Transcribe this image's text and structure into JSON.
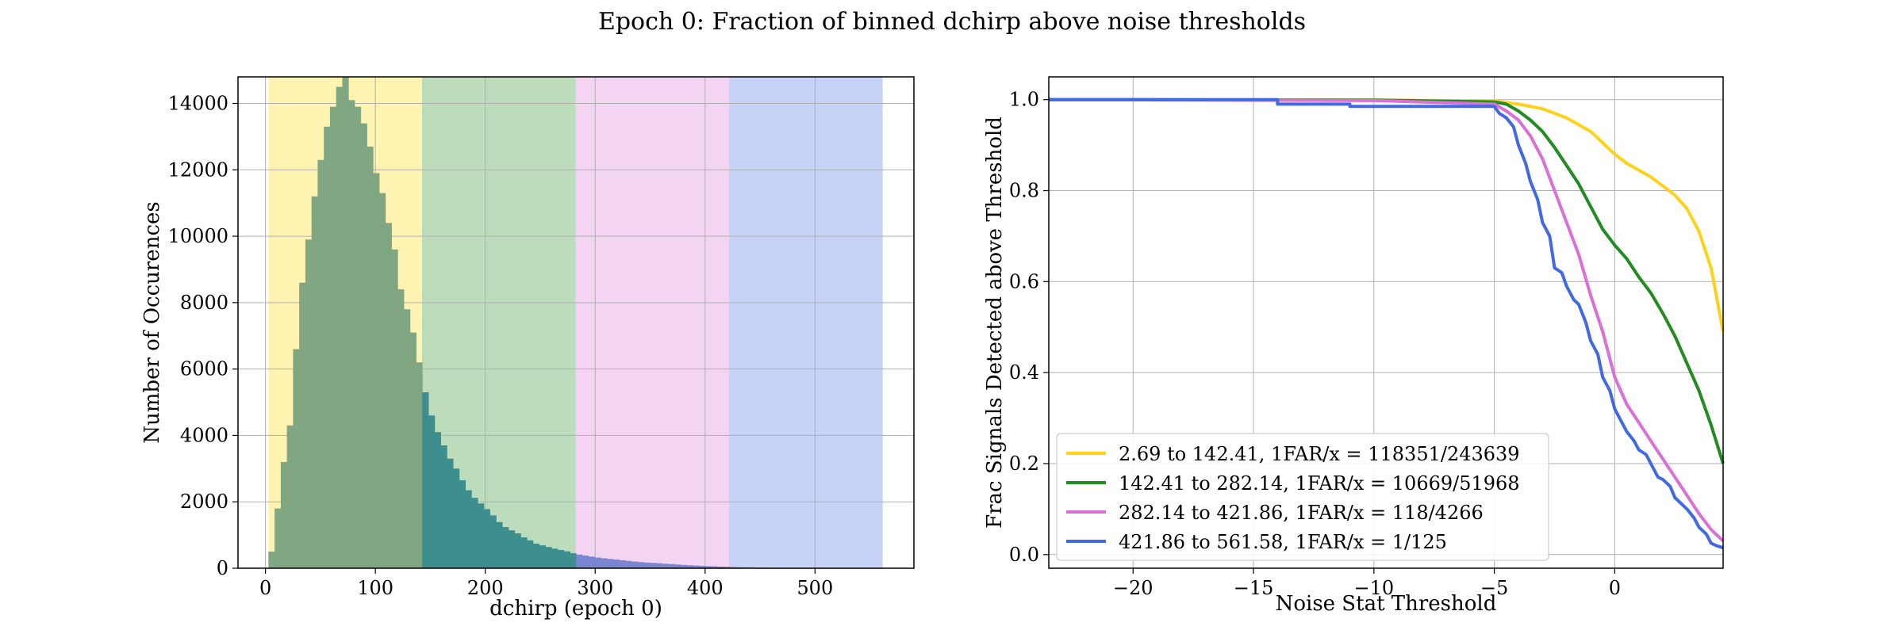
{
  "figure": {
    "title": "Epoch 0: Fraction of binned dchirp above noise thresholds"
  },
  "chart_data": [
    {
      "type": "bar",
      "xlabel": "dchirp (epoch 0)",
      "ylabel": "Number of Occurences",
      "xlim": [
        -25,
        590
      ],
      "ylim": [
        0,
        14800
      ],
      "grid": true,
      "xticks": [
        0,
        100,
        200,
        300,
        400,
        500
      ],
      "yticks": [
        0,
        2000,
        4000,
        6000,
        8000,
        10000,
        12000,
        14000
      ],
      "bands": [
        {
          "from": 2.69,
          "to": 142.41,
          "color": "#ffd700"
        },
        {
          "from": 142.41,
          "to": 282.14,
          "color": "#228b22"
        },
        {
          "from": 282.14,
          "to": 421.86,
          "color": "#da70d6"
        },
        {
          "from": 421.86,
          "to": 561.58,
          "color": "#4169e1"
        }
      ],
      "bin_width": 5.6,
      "bin_start": 2.69,
      "colors": {
        "low": "#80a682",
        "mid": "#3e8e8e",
        "high": "#7a86cf"
      },
      "counts": [
        500,
        1800,
        3200,
        4300,
        6600,
        8600,
        9900,
        11200,
        12300,
        13300,
        13900,
        14500,
        14800,
        14100,
        13900,
        13400,
        12700,
        11900,
        11300,
        10400,
        9600,
        8400,
        7800,
        7100,
        6200,
        5300,
        4600,
        4100,
        3700,
        3300,
        3000,
        2650,
        2350,
        2120,
        1950,
        1780,
        1590,
        1390,
        1240,
        1140,
        1050,
        930,
        840,
        740,
        690,
        640,
        590,
        550,
        510,
        450,
        410,
        380,
        350,
        320,
        300,
        280,
        260,
        240,
        220,
        200,
        185,
        170,
        160,
        150,
        135,
        125,
        110,
        100,
        90,
        80,
        70,
        62,
        55,
        48,
        42,
        36,
        30,
        26,
        22,
        18,
        15,
        12,
        10,
        8,
        6,
        5,
        4,
        3,
        3,
        2,
        2,
        1,
        1,
        1,
        1,
        1,
        1,
        0,
        0,
        0
      ]
    },
    {
      "type": "line",
      "xlabel": "Noise Stat Threshold",
      "ylabel": "Frac Signals Detected above Threshold",
      "xlim": [
        -23.5,
        4.5
      ],
      "ylim": [
        -0.03,
        1.05
      ],
      "grid": true,
      "xticks": [
        -20,
        -15,
        -10,
        -5,
        0
      ],
      "xtick_labels": [
        "−20",
        "−15",
        "−10",
        "−5",
        "0"
      ],
      "yticks": [
        0.0,
        0.2,
        0.4,
        0.6,
        0.8,
        1.0
      ],
      "ytick_labels": [
        "0.0",
        "0.2",
        "0.4",
        "0.6",
        "0.8",
        "1.0"
      ],
      "legend_position": "lower-left",
      "series": [
        {
          "name": "2.69 to 142.41, 1FAR/x = 118351/243639",
          "color": "#ffd11a",
          "x": [
            -23.5,
            -10,
            -5,
            -4,
            -3,
            -2,
            -1,
            -0.5,
            0,
            0.5,
            1,
            1.5,
            2,
            2.5,
            3,
            3.5,
            4,
            4.5
          ],
          "y": [
            1.0,
            0.999,
            0.997,
            0.99,
            0.98,
            0.96,
            0.93,
            0.905,
            0.88,
            0.86,
            0.845,
            0.83,
            0.81,
            0.79,
            0.76,
            0.71,
            0.63,
            0.49
          ]
        },
        {
          "name": "142.41 to 282.14, 1FAR/x = 10669/51968",
          "color": "#228b22",
          "x": [
            -23.5,
            -10,
            -5,
            -4.5,
            -4,
            -3.5,
            -3,
            -2.5,
            -2,
            -1.5,
            -1,
            -0.5,
            0,
            0.5,
            1,
            1.5,
            2,
            2.5,
            3,
            3.5,
            4,
            4.5
          ],
          "y": [
            1.0,
            0.999,
            0.995,
            0.99,
            0.975,
            0.955,
            0.93,
            0.895,
            0.855,
            0.815,
            0.765,
            0.715,
            0.68,
            0.65,
            0.61,
            0.575,
            0.53,
            0.48,
            0.42,
            0.36,
            0.285,
            0.2
          ]
        },
        {
          "name": "282.14 to 421.86, 1FAR/x = 118/4266",
          "color": "#da70d6",
          "x": [
            -23.5,
            -10,
            -5,
            -4.5,
            -4,
            -3.5,
            -3,
            -2.5,
            -2,
            -1.5,
            -1,
            -0.5,
            0,
            0.5,
            1,
            1.5,
            2,
            2.5,
            3,
            3.5,
            4,
            4.5
          ],
          "y": [
            1.0,
            0.998,
            0.99,
            0.975,
            0.955,
            0.92,
            0.87,
            0.8,
            0.73,
            0.66,
            0.57,
            0.49,
            0.39,
            0.33,
            0.29,
            0.25,
            0.21,
            0.17,
            0.13,
            0.09,
            0.055,
            0.03
          ]
        },
        {
          "name": "421.86 to 561.58, 1FAR/x = 1/125",
          "color": "#4169e1",
          "x": [
            -23.5,
            -14,
            -14,
            -11,
            -11,
            -5,
            -4.8,
            -4.5,
            -4.2,
            -4,
            -3.7,
            -3.5,
            -3.2,
            -3,
            -2.7,
            -2.5,
            -2.2,
            -2,
            -1.7,
            -1.5,
            -1.2,
            -1,
            -0.7,
            -0.5,
            -0.2,
            0,
            0.3,
            0.5,
            0.8,
            1,
            1.3,
            1.5,
            1.8,
            2,
            2.3,
            2.5,
            2.8,
            3,
            3.3,
            3.5,
            3.8,
            4,
            4.2,
            4.5
          ],
          "y": [
            1.0,
            1.0,
            0.99,
            0.99,
            0.985,
            0.985,
            0.97,
            0.96,
            0.94,
            0.9,
            0.86,
            0.82,
            0.78,
            0.73,
            0.7,
            0.63,
            0.62,
            0.59,
            0.56,
            0.55,
            0.51,
            0.47,
            0.44,
            0.39,
            0.36,
            0.32,
            0.29,
            0.27,
            0.25,
            0.23,
            0.22,
            0.2,
            0.17,
            0.165,
            0.15,
            0.125,
            0.11,
            0.1,
            0.08,
            0.06,
            0.045,
            0.025,
            0.02,
            0.015
          ]
        }
      ]
    }
  ]
}
